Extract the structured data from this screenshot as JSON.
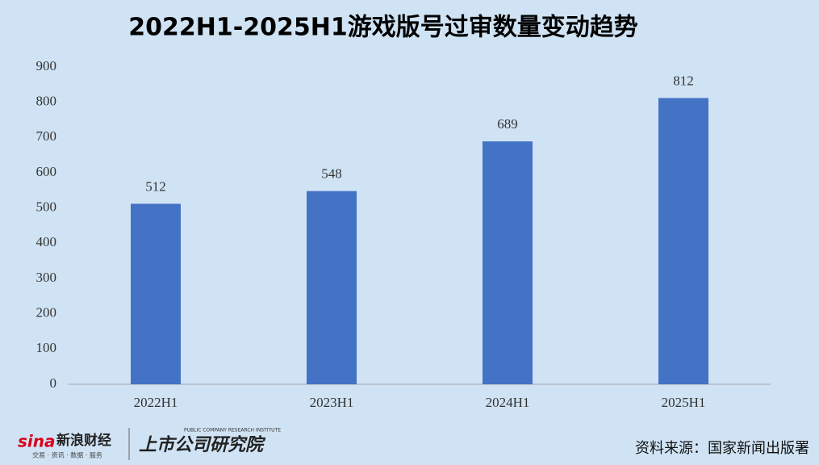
{
  "chart_data": {
    "type": "bar",
    "title": "2022H1-2025H1游戏版号过审数量变动趋势",
    "categories": [
      "2022H1",
      "2023H1",
      "2024H1",
      "2025H1"
    ],
    "values": [
      512,
      548,
      689,
      812
    ],
    "color": "#4472c4",
    "ylim": [
      0,
      900
    ],
    "yticks": [
      0,
      100,
      200,
      300,
      400,
      500,
      600,
      700,
      800,
      900
    ],
    "grid": false
  },
  "footer": {
    "sina_logo": "sina",
    "sina_name": "新浪财经",
    "sina_tagline": "交易 · 资讯 · 数据 · 服务",
    "institute_name": "上市公司研究院",
    "institute_en": "PUBLIC COMPANY RESEARCH INSTITUTE",
    "source": "资料来源：国家新闻出版署"
  }
}
